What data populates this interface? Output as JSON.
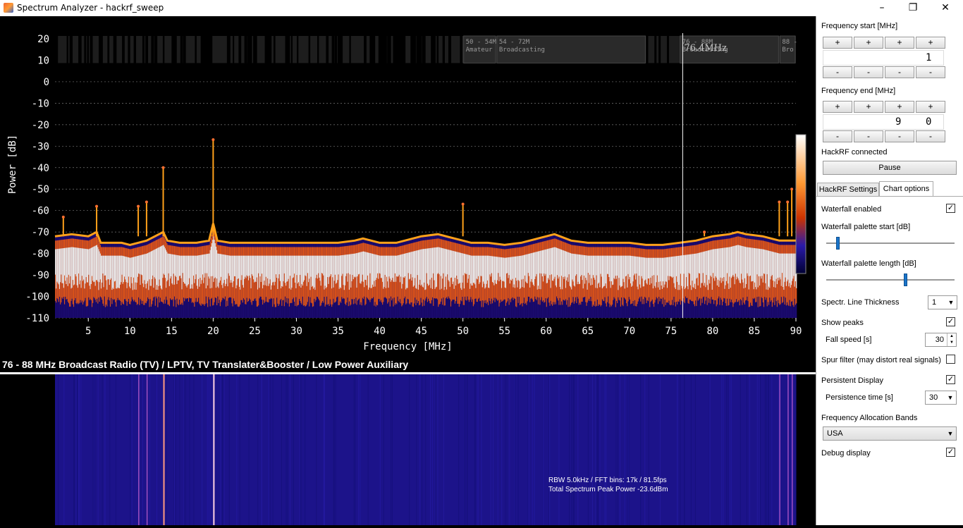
{
  "window": {
    "title": "Spectrum Analyzer - hackrf_sweep",
    "minimize": "–",
    "maximize": "❐",
    "close": "✕"
  },
  "chart_data": {
    "type": "line",
    "title": "",
    "xlabel": "Frequency [MHz]",
    "ylabel": "Power [dB]",
    "xlim": [
      1,
      90
    ],
    "ylim": [
      -110,
      20
    ],
    "x_ticks": [
      5,
      10,
      15,
      20,
      25,
      30,
      35,
      40,
      45,
      50,
      55,
      60,
      65,
      70,
      75,
      80,
      85,
      90
    ],
    "y_ticks": [
      20,
      10,
      0,
      -10,
      -20,
      -30,
      -40,
      -50,
      -60,
      -70,
      -80,
      -90,
      -100,
      -110
    ],
    "grid": true,
    "cursor_label": "76.4MHz",
    "cursor_x": 76.4,
    "bands": [
      {
        "label": "50 - 54M",
        "label2": "Amateur",
        "start": 50,
        "end": 54
      },
      {
        "label": "54 - 72M",
        "label2": "Broadcasting",
        "start": 54,
        "end": 72
      },
      {
        "label": "76 - 88M",
        "label2": "Broadcasting",
        "start": 76,
        "end": 88
      },
      {
        "label": "88 -",
        "label2": "Bro",
        "start": 88,
        "end": 90
      }
    ],
    "series": [
      {
        "color": "#ffa11a",
        "x": [
          1,
          3,
          5,
          6,
          6.5,
          9,
          10,
          12,
          14,
          14.5,
          16,
          18,
          19.5,
          20,
          20.5,
          22,
          25,
          28,
          30,
          33,
          35,
          37,
          38,
          40,
          42,
          45,
          47,
          49,
          50,
          51,
          53,
          55,
          57,
          59,
          61,
          63,
          65,
          68,
          70,
          72,
          74,
          76,
          78,
          80,
          82,
          83,
          84,
          86,
          88,
          90
        ],
        "values": [
          -72,
          -71,
          -72,
          -70,
          -75,
          -75,
          -76,
          -74,
          -70,
          -74,
          -75,
          -75,
          -74,
          -66,
          -74,
          -75,
          -75,
          -75,
          -75,
          -75,
          -75,
          -74,
          -73,
          -75,
          -75,
          -72,
          -71,
          -73,
          -74,
          -75,
          -75,
          -76,
          -75,
          -73,
          -71,
          -74,
          -75,
          -75,
          -75,
          -76,
          -76,
          -75,
          -74,
          -72,
          -71,
          -70,
          -71,
          -72,
          -74,
          -74
        ]
      },
      {
        "color": "#ffa11a",
        "peaks": true,
        "x": [
          2,
          6,
          11,
          12,
          14,
          20,
          50,
          79,
          88,
          89,
          89.5
        ],
        "values": [
          -63,
          -58,
          -58,
          -56,
          -40,
          -27,
          -57,
          -70,
          -56,
          -56,
          -50
        ]
      }
    ]
  },
  "band_info": "76 - 88 MHz  Broadcast Radio (TV) / LPTV, TV Translater&Booster / Low Power Auxiliary",
  "waterfall": {
    "info_line1": "RBW 5.0kHz / FFT bins: 17k / 81.5fps",
    "info_line2": "Total Spectrum Peak Power -23.6dBm"
  },
  "panel": {
    "freq_start": {
      "label": "Frequency start [MHz]",
      "plus": "+",
      "minus": "-",
      "digits": [
        "",
        "",
        "",
        "1"
      ]
    },
    "freq_end": {
      "label": "Frequency end [MHz]",
      "plus": "+",
      "minus": "-",
      "digits": [
        "",
        "",
        "9",
        "0"
      ]
    },
    "status": "HackRF connected",
    "pause": "Pause",
    "tabs": [
      "HackRF Settings",
      "Chart options"
    ],
    "options": {
      "waterfall_enabled": "Waterfall enabled",
      "palette_start": "Waterfall palette start [dB]",
      "palette_start_value": 0.08,
      "palette_length": "Waterfall palette length [dB]",
      "palette_length_value": 0.62,
      "line_thickness": "Spectr. Line Thickness",
      "line_thickness_value": "1",
      "show_peaks": "Show peaks",
      "fall_speed": "Fall speed [s]",
      "fall_speed_value": "30",
      "spur_filter": "Spur filter (may distort real signals)",
      "persistent": "Persistent Display",
      "persistence_time": "Persistence time [s]",
      "persistence_value": "30",
      "alloc_bands": "Frequency Allocation Bands",
      "alloc_value": "USA",
      "debug": "Debug display",
      "check": "✓"
    }
  }
}
